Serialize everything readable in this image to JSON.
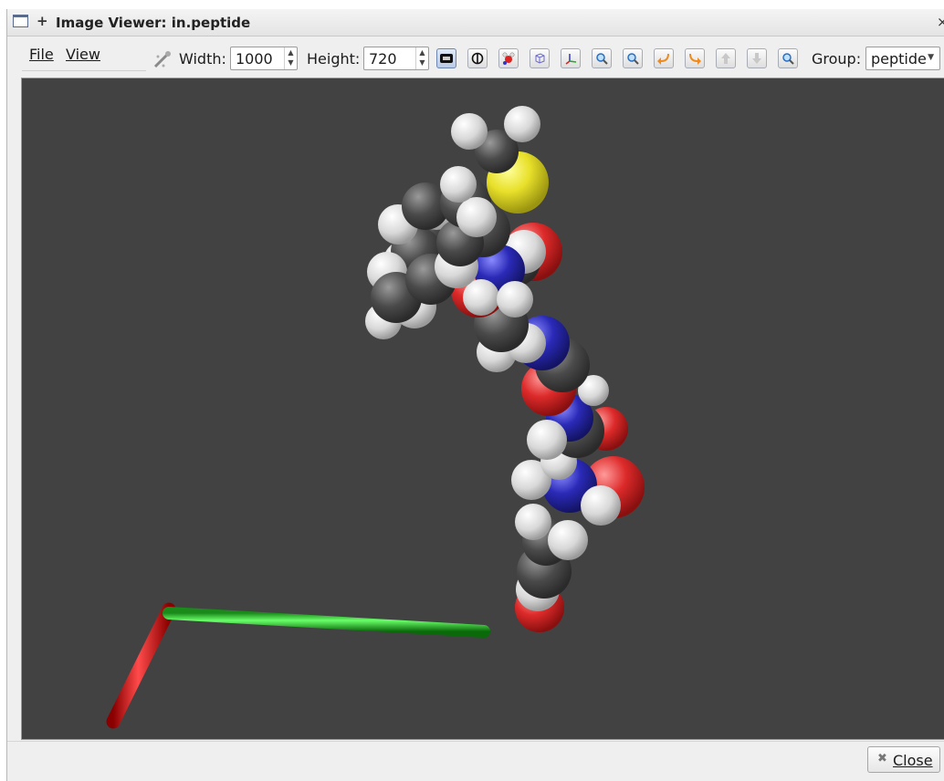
{
  "window": {
    "title": "Image Viewer: in.peptide",
    "pin_icon": "+",
    "close_glyph": "×"
  },
  "menu": {
    "file": "File",
    "view": "View"
  },
  "toolbar": {
    "width_label": "Width:",
    "width_value": "1000",
    "height_label": "Height:",
    "height_value": "720",
    "group_label": "Group:",
    "group_value": "peptide",
    "buttons": [
      {
        "name": "hd-toggle-button",
        "icon": "hd-icon",
        "active": true
      },
      {
        "name": "ssao-toggle-button",
        "icon": "shade-icon",
        "active": false
      },
      {
        "name": "vdw-style-button",
        "icon": "atoms-icon",
        "active": false
      },
      {
        "name": "box-toggle-button",
        "icon": "box-icon",
        "active": false
      },
      {
        "name": "axes-toggle-button",
        "icon": "axes-icon",
        "active": false
      },
      {
        "name": "zoom-in-button",
        "icon": "zoom-in-icon",
        "active": false
      },
      {
        "name": "zoom-out-button",
        "icon": "zoom-out-icon",
        "active": false
      },
      {
        "name": "rotate-left-button",
        "icon": "rotate-left-icon",
        "active": false
      },
      {
        "name": "rotate-right-button",
        "icon": "rotate-right-icon",
        "active": false
      },
      {
        "name": "rotate-up-button",
        "icon": "rotate-up-icon",
        "active": false
      },
      {
        "name": "rotate-down-button",
        "icon": "rotate-down-icon",
        "active": false
      },
      {
        "name": "reset-view-button",
        "icon": "reset-icon",
        "active": false
      }
    ]
  },
  "footer": {
    "close_label": "Close"
  },
  "colors": {
    "background": "#424242",
    "axis_x": "#e00000",
    "axis_y": "#00c800",
    "axis_z": "#0000e0",
    "carbon": "#555555",
    "hydrogen": "#e6e6e6",
    "oxygen": "#e03030",
    "nitrogen": "#2a2aa8",
    "sulfur": "#e8e02a"
  }
}
